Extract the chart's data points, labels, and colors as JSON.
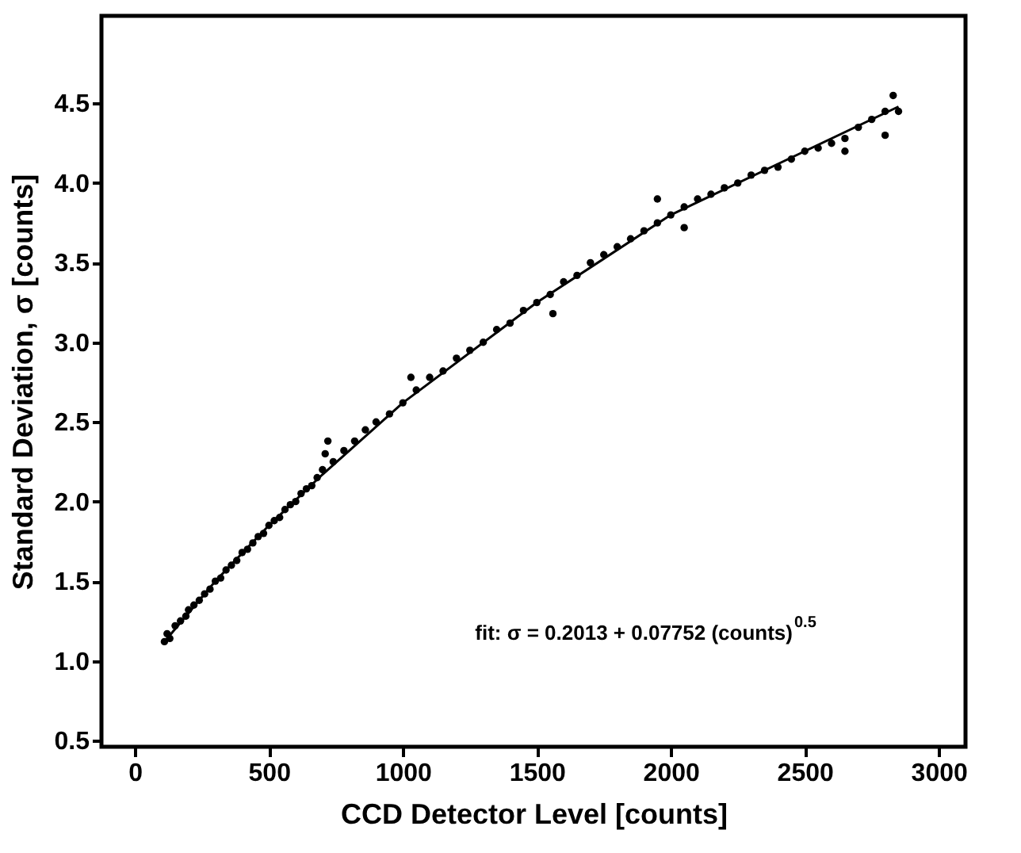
{
  "chart_data": {
    "type": "scatter",
    "xlabel": "CCD Detector Level [counts]",
    "ylabel": "Standard Deviation, σ [counts]",
    "annotations": [
      "fit: σ = 0.2013 + 0.07752 (counts)$^{0.5}$"
    ],
    "xlim": [
      -125,
      3100
    ],
    "xticks": [
      0,
      500,
      1000,
      1500,
      2000,
      2500,
      3000
    ],
    "ylim": [
      0.46,
      5.05
    ],
    "yticks": [
      {
        "value": 0.5,
        "label": "0.5"
      },
      {
        "value": 1,
        "label": "1.0"
      },
      {
        "value": 1.5,
        "label": "1.5"
      },
      {
        "value": 2,
        "label": "2.0"
      },
      {
        "value": 2.5,
        "label": "2.5"
      },
      {
        "value": 3,
        "label": "3.0"
      },
      {
        "value": 3.5,
        "label": "3.5"
      },
      {
        "value": 4,
        "label": "4.0"
      },
      {
        "value": 4.5,
        "label": "4.5"
      }
    ],
    "grid": false,
    "series": [
      {
        "color": "#000000",
        "marker": "circle",
        "x": [
          110,
          120,
          130,
          150,
          170,
          190,
          200,
          220,
          240,
          260,
          280,
          300,
          320,
          340,
          360,
          380,
          400,
          420,
          440,
          460,
          480,
          500,
          520,
          540,
          560,
          580,
          600,
          620,
          640,
          660,
          680,
          700,
          710,
          720,
          740,
          780,
          820,
          860,
          900,
          950,
          1000,
          1030,
          1050,
          1100,
          1150,
          1200,
          1250,
          1300,
          1350,
          1400,
          1450,
          1500,
          1550,
          1560,
          1600,
          1650,
          1700,
          1750,
          1800,
          1850,
          1900,
          1950,
          1950,
          2000,
          2050,
          2050,
          2100,
          2150,
          2200,
          2250,
          2300,
          2350,
          2400,
          2450,
          2500,
          2550,
          2600,
          2650,
          2650,
          2700,
          2750,
          2800,
          2800,
          2830,
          2850
        ],
        "values": [
          1.12,
          1.17,
          1.14,
          1.22,
          1.25,
          1.28,
          1.32,
          1.35,
          1.38,
          1.42,
          1.45,
          1.5,
          1.52,
          1.57,
          1.6,
          1.63,
          1.68,
          1.7,
          1.74,
          1.78,
          1.8,
          1.85,
          1.88,
          1.9,
          1.95,
          1.98,
          2.0,
          2.05,
          2.08,
          2.1,
          2.15,
          2.2,
          2.3,
          2.38,
          2.25,
          2.32,
          2.38,
          2.45,
          2.5,
          2.55,
          2.62,
          2.78,
          2.7,
          2.78,
          2.82,
          2.9,
          2.95,
          3.0,
          3.08,
          3.12,
          3.2,
          3.25,
          3.3,
          3.18,
          3.38,
          3.42,
          3.5,
          3.55,
          3.6,
          3.65,
          3.7,
          3.75,
          3.9,
          3.8,
          3.85,
          3.72,
          3.9,
          3.93,
          3.97,
          4.0,
          4.05,
          4.08,
          4.1,
          4.15,
          4.2,
          4.22,
          4.25,
          4.28,
          4.2,
          4.35,
          4.4,
          4.45,
          4.3,
          4.55,
          4.45
        ]
      },
      {
        "type": "line",
        "color": "#000000",
        "line_style": "solid",
        "x": [
          110,
          300,
          500,
          700,
          1000,
          1500,
          2000,
          2500,
          2850
        ],
        "values": [
          1.12,
          1.5,
          1.85,
          2.17,
          2.62,
          3.25,
          3.8,
          4.2,
          4.48
        ]
      }
    ]
  }
}
